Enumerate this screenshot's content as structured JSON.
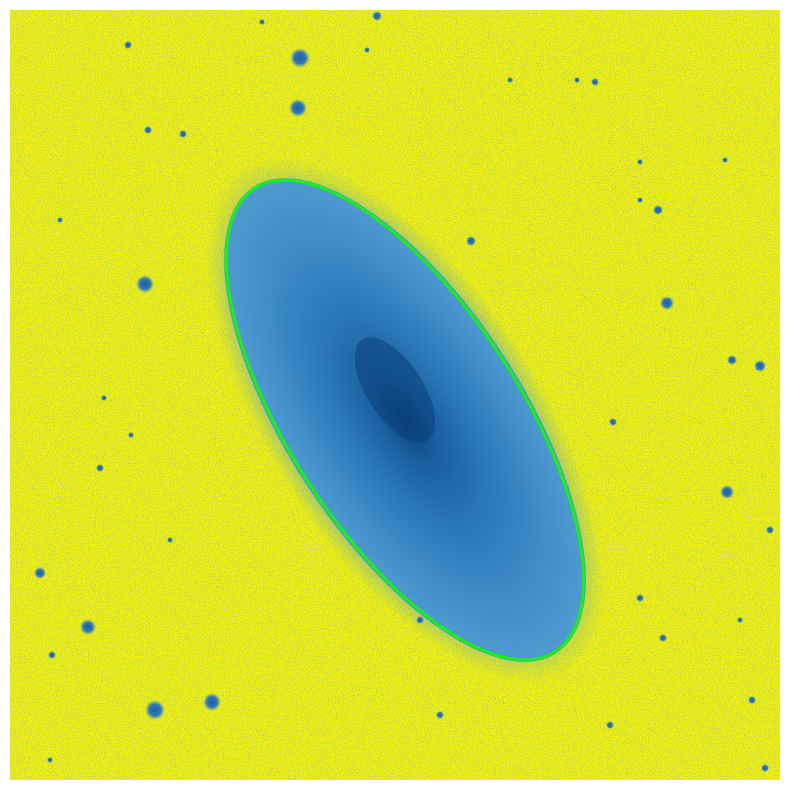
{
  "image": {
    "subject": "galaxy-image-with-isophote-ellipse",
    "colors": {
      "background": "#ffffff",
      "sky": "#f4f000",
      "sky_speckle": "#4f8fc0",
      "galaxy_outer": "#4f9ad0",
      "galaxy_mid": "#2b78b8",
      "galaxy_core": "#0a3f7a",
      "stars": "#2f79b8",
      "ellipse": "#18f018"
    }
  }
}
